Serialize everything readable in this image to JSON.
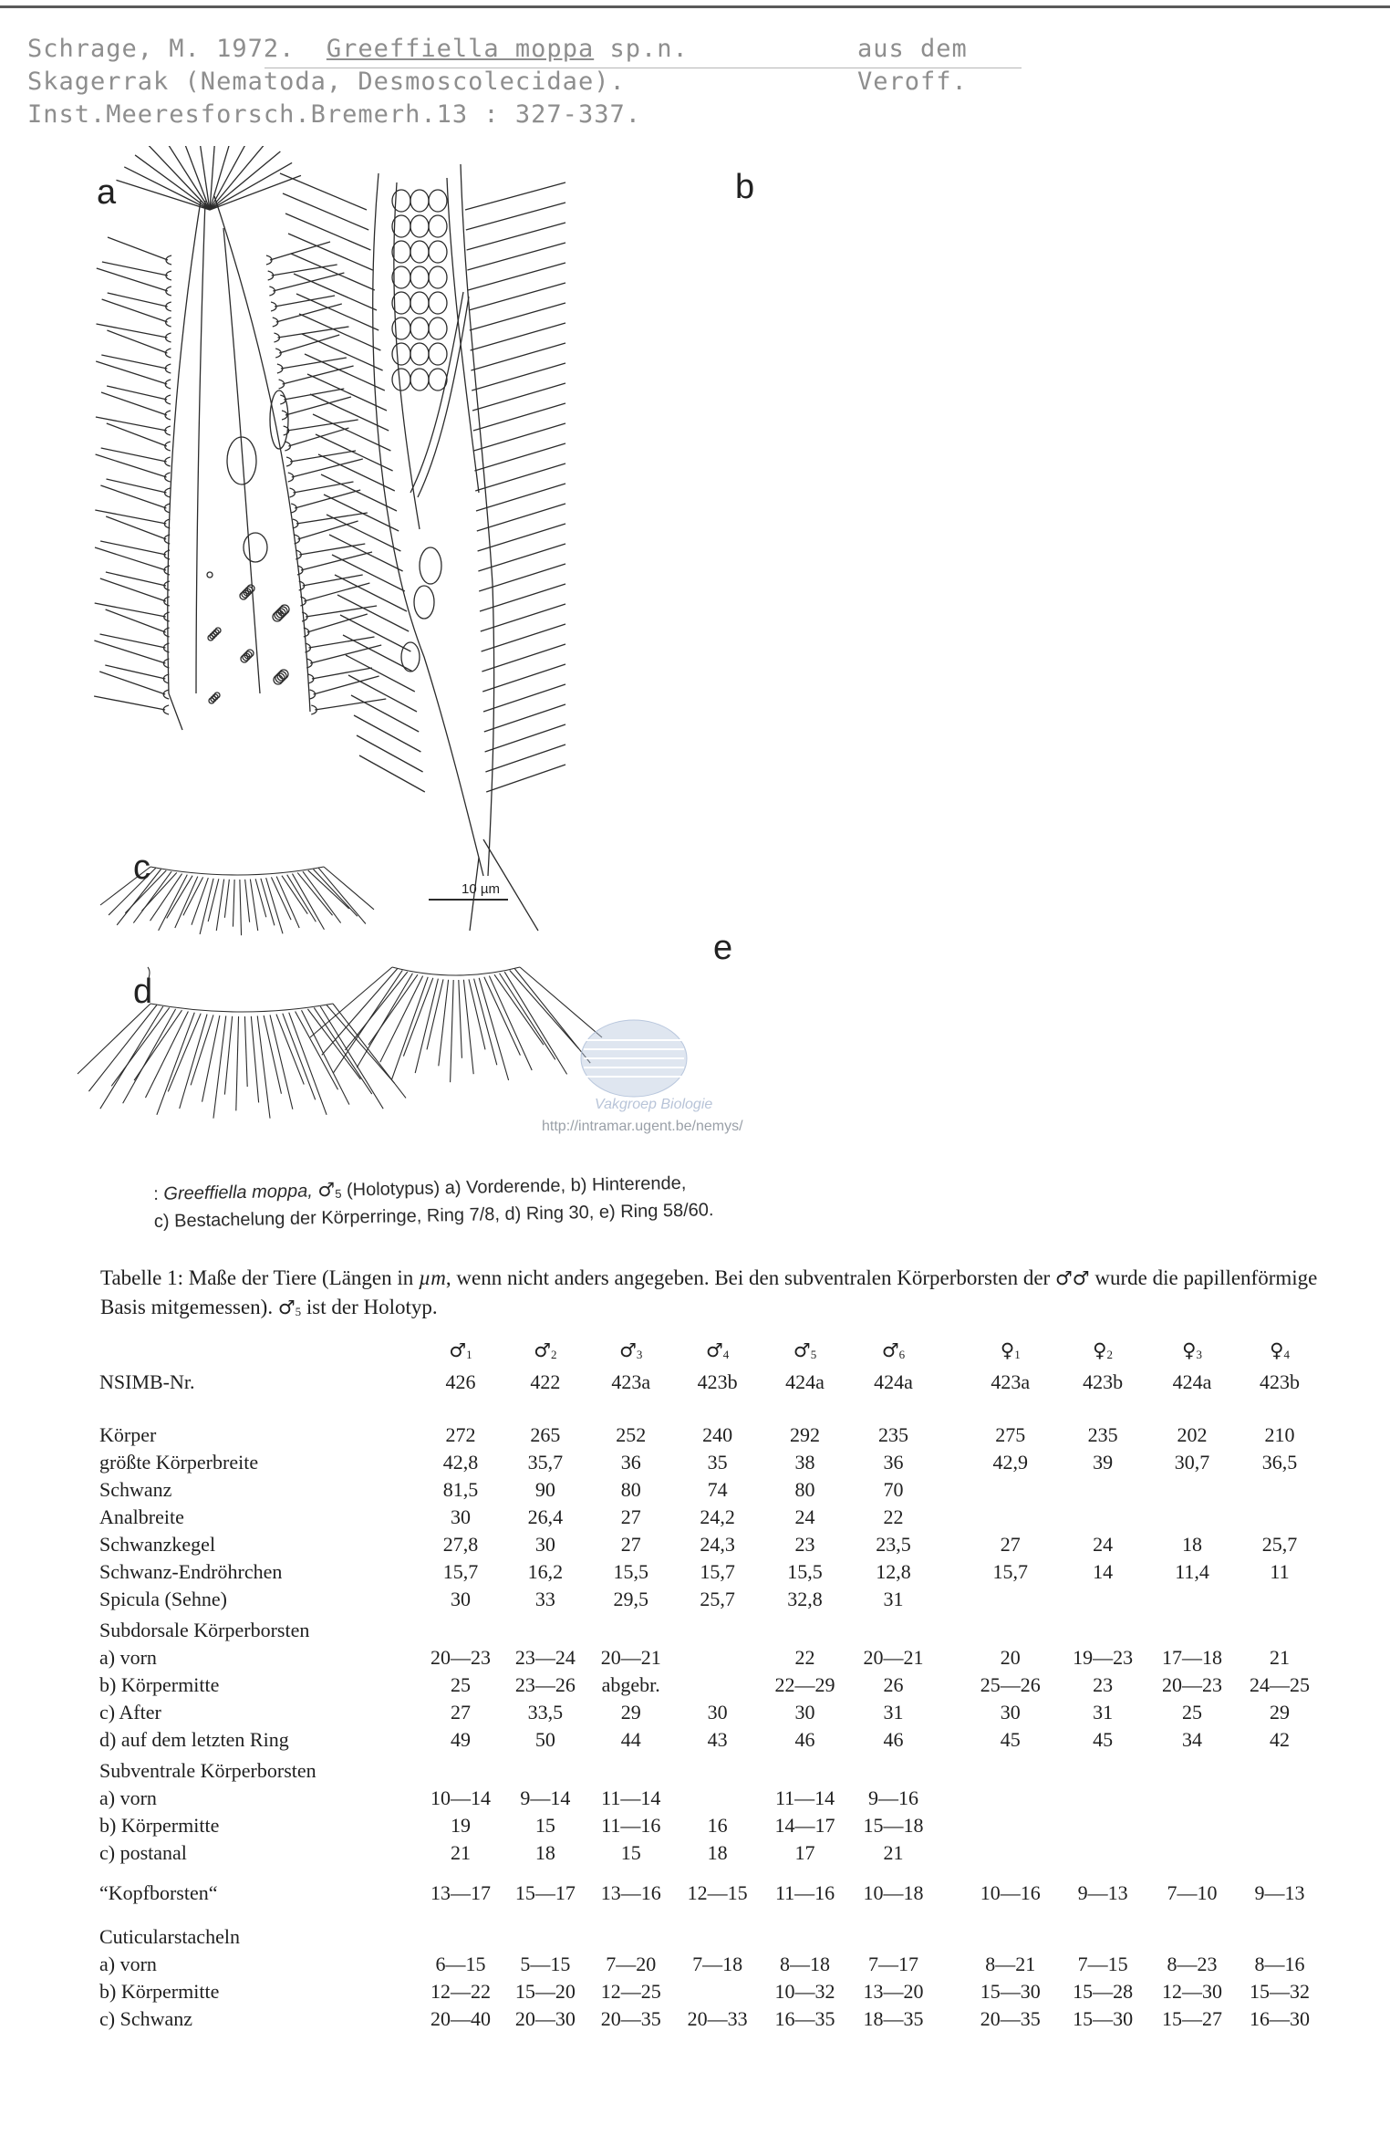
{
  "reference": {
    "line1_left": "Schrage, M. 1972.",
    "line1_title": "Greeffiella moppa",
    "line1_rest": " sp.n.",
    "line1_right": "aus dem",
    "line2_left": "Skagerrak (Nematoda, Desmoscolecidae).",
    "line2_right": "Veroff.",
    "line3": "Inst.Meeresforsch.Bremerh.13 : 327-337."
  },
  "figure": {
    "labels": {
      "a": "a",
      "b": "b",
      "c": "c",
      "d": "d",
      "e": "e"
    },
    "scale": "10 µm",
    "watermark_name": "Vakgroep Biologie",
    "watermark_url": "http://intramar.ugent.be/nemys/",
    "stroke_color": "#2b2b2b",
    "watermark_color": "#b9c7dd"
  },
  "figure_caption": {
    "prefix": ": ",
    "species": "Greeffiella moppa,",
    "male_symbol": "♂",
    "male_index": "5",
    "text_line1": " (Holotypus) a) Vorderende, b) Hinterende,",
    "text_line2": "c) Bestachelung der Körperringe, Ring 7/8, d) Ring 30, e) Ring 58/60."
  },
  "table": {
    "caption_part1": "Tabelle 1: Maße der Tiere (Längen in ",
    "caption_unit": "µm",
    "caption_part2": ", wenn nicht anders angegeben. Bei den subventralen Körperborsten der ",
    "caption_males": "♂♂",
    "caption_part3": " wurde die papillenförmige Basis mitgemessen). ",
    "caption_holotype": "♂",
    "caption_holotype_index": "5",
    "caption_part4": " ist der Holotyp.",
    "columns": [
      {
        "sym": "♂",
        "idx": "1",
        "nr": "426"
      },
      {
        "sym": "♂",
        "idx": "2",
        "nr": "422"
      },
      {
        "sym": "♂",
        "idx": "3",
        "nr": "423a"
      },
      {
        "sym": "♂",
        "idx": "4",
        "nr": "423b"
      },
      {
        "sym": "♂",
        "idx": "5",
        "nr": "424a"
      },
      {
        "sym": "♂",
        "idx": "6",
        "nr": "424a"
      },
      {
        "sym": "♀",
        "idx": "1",
        "nr": "423a"
      },
      {
        "sym": "♀",
        "idx": "2",
        "nr": "423b"
      },
      {
        "sym": "♀",
        "idx": "3",
        "nr": "424a"
      },
      {
        "sym": "♀",
        "idx": "4",
        "nr": "423b"
      }
    ],
    "nr_label": "NSIMB-Nr.",
    "rows": [
      {
        "label": "Körper",
        "values": [
          "272",
          "265",
          "252",
          "240",
          "292",
          "235",
          "275",
          "235",
          "202",
          "210"
        ]
      },
      {
        "label": "größte Körperbreite",
        "values": [
          "42,8",
          "35,7",
          "36",
          "35",
          "38",
          "36",
          "42,9",
          "39",
          "30,7",
          "36,5"
        ]
      },
      {
        "label": "Schwanz",
        "values": [
          "81,5",
          "90",
          "80",
          "74",
          "80",
          "70",
          "",
          "",
          "",
          ""
        ]
      },
      {
        "label": "Analbreite",
        "values": [
          "30",
          "26,4",
          "27",
          "24,2",
          "24",
          "22",
          "",
          "",
          "",
          ""
        ]
      },
      {
        "label": "Schwanzkegel",
        "values": [
          "27,8",
          "30",
          "27",
          "24,3",
          "23",
          "23,5",
          "27",
          "24",
          "18",
          "25,7"
        ]
      },
      {
        "label": "Schwanz-Endröhrchen",
        "values": [
          "15,7",
          "16,2",
          "15,5",
          "15,7",
          "15,5",
          "12,8",
          "15,7",
          "14",
          "11,4",
          "11"
        ]
      },
      {
        "label": "Spicula (Sehne)",
        "values": [
          "30",
          "33",
          "29,5",
          "25,7",
          "32,8",
          "31",
          "",
          "",
          "",
          ""
        ]
      }
    ],
    "sections": [
      {
        "title": "Subdorsale Körperborsten",
        "rows": [
          {
            "label": "a) vorn",
            "values": [
              "20—23",
              "23—24",
              "20—21",
              "",
              "22",
              "20—21",
              "20",
              "19—23",
              "17—18",
              "21"
            ]
          },
          {
            "label": "b) Körpermitte",
            "values": [
              "25",
              "23—26",
              "abgebr.",
              "",
              "22—29",
              "26",
              "25—26",
              "23",
              "20—23",
              "24—25"
            ]
          },
          {
            "label": "c) After",
            "values": [
              "27",
              "33,5",
              "29",
              "30",
              "30",
              "31",
              "30",
              "31",
              "25",
              "29"
            ]
          },
          {
            "label": "d) auf dem letzten Ring",
            "values": [
              "49",
              "50",
              "44",
              "43",
              "46",
              "46",
              "45",
              "45",
              "34",
              "42"
            ]
          }
        ]
      },
      {
        "title": "Subventrale Körperborsten",
        "rows": [
          {
            "label": "a) vorn",
            "values": [
              "10—14",
              "9—14",
              "11—14",
              "",
              "11—14",
              "9—16",
              "",
              "",
              "",
              ""
            ]
          },
          {
            "label": "b) Körpermitte",
            "values": [
              "19",
              "15",
              "11—16",
              "16",
              "14—17",
              "15—18",
              "",
              "",
              "",
              ""
            ]
          },
          {
            "label": "c) postanal",
            "values": [
              "21",
              "18",
              "15",
              "18",
              "17",
              "21",
              "",
              "",
              "",
              ""
            ]
          }
        ]
      }
    ],
    "kopf": {
      "label": "“Kopfborsten“",
      "values": [
        "13—17",
        "15—17",
        "13—16",
        "12—15",
        "11—16",
        "10—18",
        "10—16",
        "9—13",
        "7—10",
        "9—13"
      ]
    },
    "cuticular": {
      "title": "Cuticularstacheln",
      "rows": [
        {
          "label": "a) vorn",
          "values": [
            "6—15",
            "5—15",
            "7—20",
            "7—18",
            "8—18",
            "7—17",
            "8—21",
            "7—15",
            "8—23",
            "8—16"
          ]
        },
        {
          "label": "b) Körpermitte",
          "values": [
            "12—22",
            "15—20",
            "12—25",
            "",
            "10—32",
            "13—20",
            "15—30",
            "15—28",
            "12—30",
            "15—32"
          ]
        },
        {
          "label": "c) Schwanz",
          "values": [
            "20—40",
            "20—30",
            "20—35",
            "20—33",
            "16—35",
            "18—35",
            "20—35",
            "15—30",
            "15—27",
            "16—30"
          ]
        }
      ]
    }
  }
}
